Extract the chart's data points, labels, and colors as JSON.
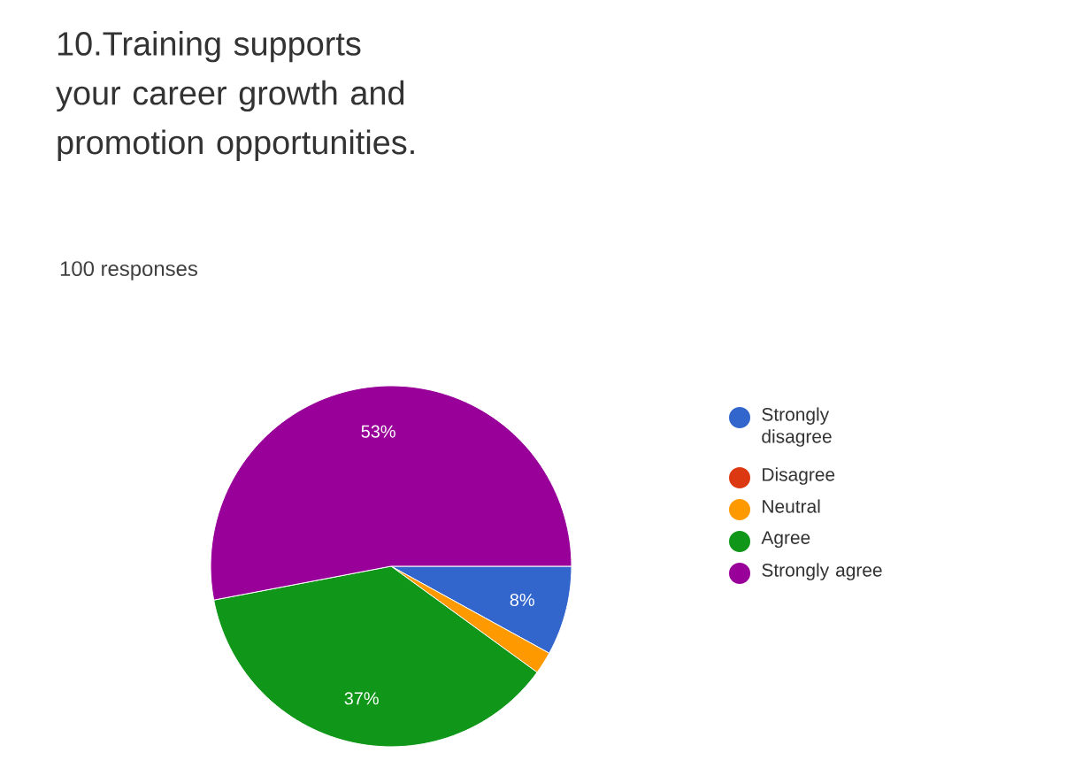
{
  "chart_data": {
    "type": "pie",
    "title": "10.Training supports your career growth and promotion opportunities.",
    "subtitle": "100 responses",
    "categories": [
      "Strongly disagree",
      "Disagree",
      "Neutral",
      "Agree",
      "Strongly agree"
    ],
    "values": [
      8,
      0,
      2,
      37,
      53
    ],
    "colors": [
      "#3366cc",
      "#dc3912",
      "#ff9900",
      "#109618",
      "#990099"
    ],
    "value_labels": [
      "8%",
      null,
      null,
      "37%",
      "53%"
    ],
    "legend": "right"
  }
}
